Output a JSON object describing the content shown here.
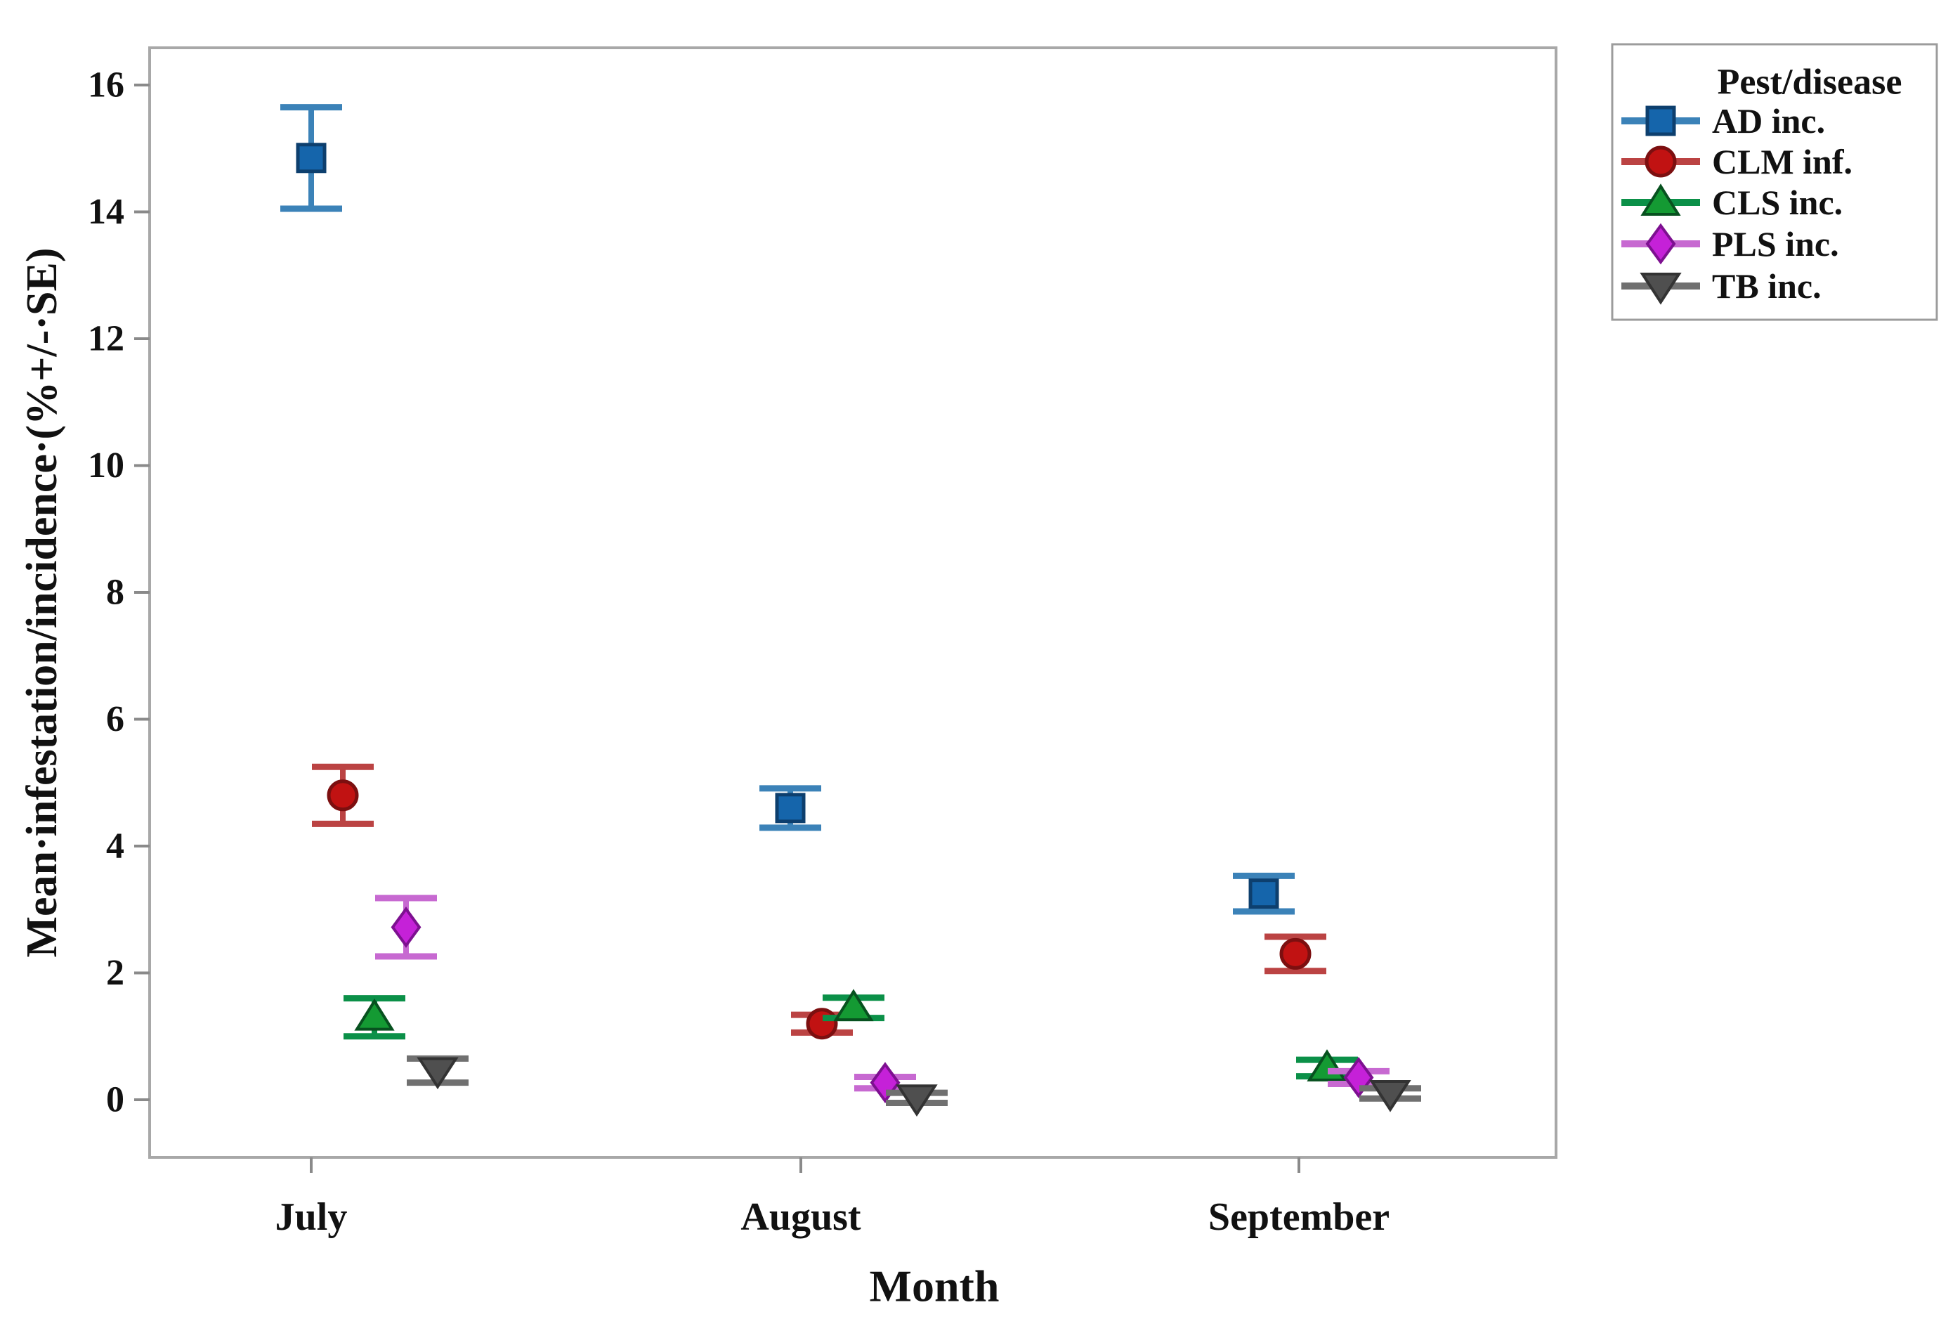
{
  "figure": {
    "background": "#ffffff",
    "frame_color": "#a8a8a8",
    "tick_color": "#8a8a8a",
    "text_color": "#111111"
  },
  "chart_data": {
    "type": "scatter",
    "title": "",
    "xlabel": "Month",
    "ylabel": "Mean·infestation/incidence·(%+/-·SE)",
    "categories": [
      "July",
      "August",
      "September"
    ],
    "yticks": [
      0,
      2,
      4,
      6,
      8,
      10,
      12,
      14,
      16
    ],
    "ylim": [
      -0.9,
      16.6
    ],
    "grid": false,
    "error_bar_unit": "standard error",
    "legend_title": "Pest/disease",
    "legend_position": "top-right-outside",
    "series": [
      {
        "name": "AD inc.",
        "marker": "square",
        "color": "#1565ab",
        "edge": "#0d3f6e",
        "line_color": "#3b82b8",
        "means": [
          14.85,
          4.6,
          3.25
        ],
        "se": [
          0.8,
          0.31,
          0.28
        ]
      },
      {
        "name": "CLM inf.",
        "marker": "circle",
        "color": "#c11212",
        "edge": "#7c0f10",
        "line_color": "#bb4343",
        "means": [
          4.8,
          1.2,
          2.3
        ],
        "se": [
          0.45,
          0.14,
          0.27
        ]
      },
      {
        "name": "CLS inc.",
        "marker": "triangle-up",
        "color": "#149a33",
        "edge": "#07511f",
        "line_color": "#0b9048",
        "means": [
          1.3,
          1.45,
          0.5
        ],
        "se": [
          0.3,
          0.16,
          0.13
        ]
      },
      {
        "name": "PLS inc.",
        "marker": "diamond",
        "color": "#c521d8",
        "edge": "#7d1090",
        "line_color": "#c членов69d1",
        "means": [
          2.72,
          0.27,
          0.35
        ],
        "se": [
          0.46,
          0.09,
          0.1
        ]
      },
      {
        "name": "TB inc.",
        "marker": "triangle-down",
        "color": "#4f4f4f",
        "edge": "#333333",
        "line_color": "#707070",
        "means": [
          0.46,
          0.03,
          0.1
        ],
        "se": [
          0.19,
          0.08,
          0.08
        ]
      }
    ]
  }
}
